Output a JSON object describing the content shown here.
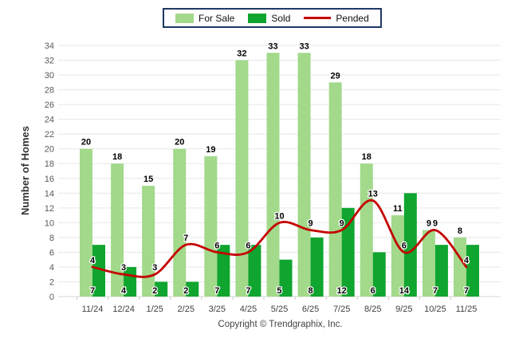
{
  "footer": {
    "copyright": "Copyright © Trendgraphix, Inc."
  },
  "chart_data": {
    "type": "bar",
    "title": "",
    "categories": [
      "11/24",
      "12/24",
      "1/25",
      "2/25",
      "3/25",
      "4/25",
      "5/25",
      "6/25",
      "7/25",
      "8/25",
      "9/25",
      "10/25",
      "11/25"
    ],
    "series": [
      {
        "name": "For Sale",
        "type": "bar",
        "color": "#A2D98A",
        "values": [
          20,
          18,
          15,
          20,
          19,
          32,
          33,
          33,
          29,
          18,
          11,
          9,
          8
        ]
      },
      {
        "name": "Sold",
        "type": "bar",
        "color": "#0FA52F",
        "values": [
          7,
          4,
          2,
          2,
          7,
          7,
          5,
          8,
          12,
          6,
          14,
          7,
          7
        ]
      },
      {
        "name": "Pended",
        "type": "line",
        "color": "#C40000",
        "values": [
          4,
          3,
          3,
          7,
          6,
          6,
          10,
          9,
          9,
          13,
          6,
          9,
          4
        ]
      }
    ],
    "xlabel": "",
    "ylabel": "Number of Homes",
    "ylim": [
      0,
      34
    ],
    "ytick_step": 2,
    "grid": true,
    "legend_position": "top",
    "colors": {
      "legend_border": "#1F3864",
      "gridline": "#E7E7E7",
      "axis_baseline": "#D5D5D5",
      "y_tick_text": "#595959",
      "x_tick_text": "#404040",
      "value_label_text": "#000000"
    }
  }
}
